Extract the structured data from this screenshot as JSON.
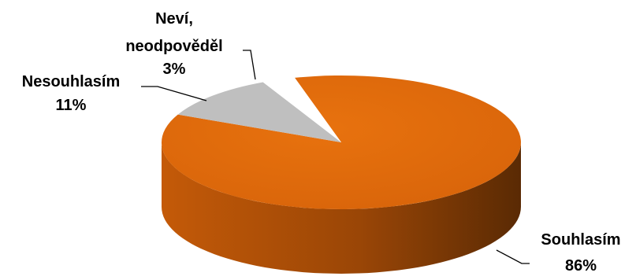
{
  "chart_data": {
    "type": "pie",
    "style": "3d",
    "title": "",
    "slices": [
      {
        "name": "Souhlasím",
        "value": 86,
        "percent_label": "86%",
        "color": "#E46C0A",
        "side_color": "#B0520A"
      },
      {
        "name": "Nesouhlasím",
        "value": 11,
        "percent_label": "11%",
        "color": "#BFBFBF",
        "side_color": "#8C8C8C"
      },
      {
        "name": "Neví, neodpověděl",
        "value": 3,
        "percent_label": "3%",
        "color": "#FFFFFF",
        "side_color": "#D9D9D9"
      }
    ],
    "labels": {
      "agree": {
        "line1": "Souhlasím",
        "line2": "86%"
      },
      "disagree": {
        "line1": "Nesouhlasím",
        "line2": "11%"
      },
      "unknown": {
        "line1": "Neví,",
        "line2": "neodpověděl",
        "line3": "3%"
      }
    },
    "legend": "none"
  }
}
